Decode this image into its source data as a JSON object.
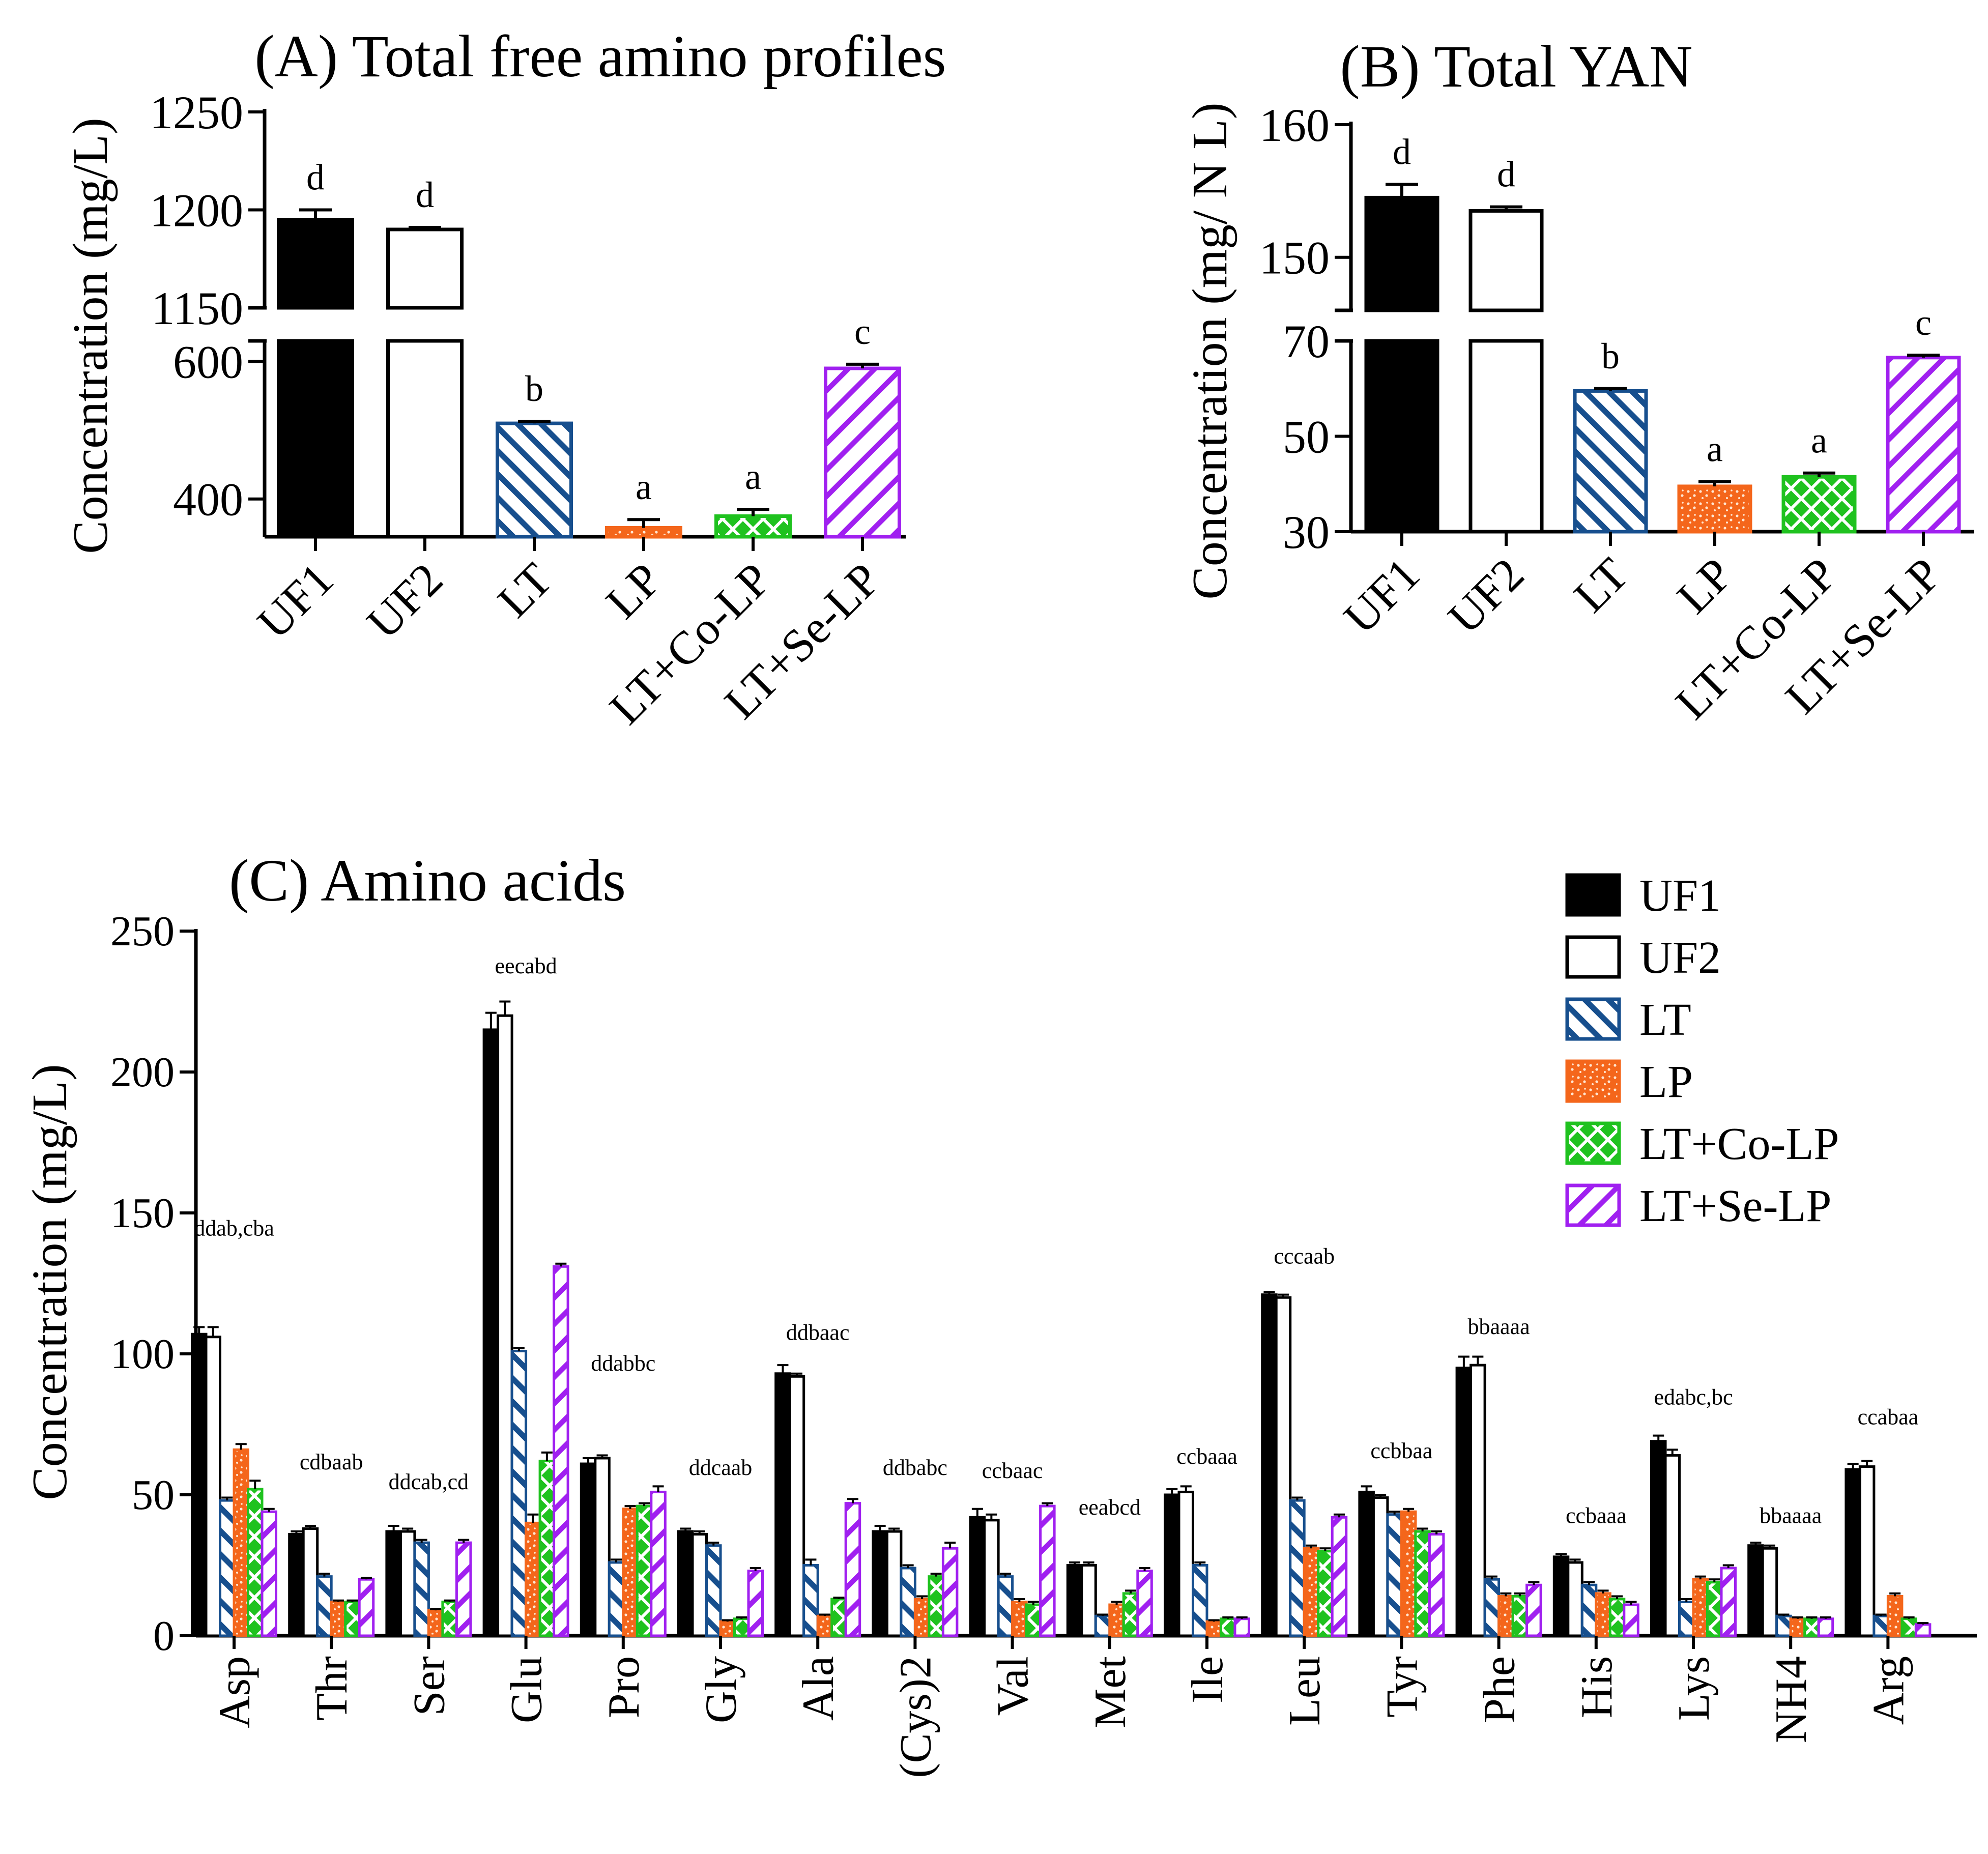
{
  "colors": {
    "UF1": "#000000",
    "UF2": "#ffffff",
    "LT": "#174f8e",
    "LP": "#f4661b",
    "LT+Co-LP": "#1fc21f",
    "LT+Se-LP": "#a020f0"
  },
  "chart_data": [
    {
      "id": "A",
      "type": "bar",
      "title": "(A) Total free amino profiles",
      "xlabel": "",
      "ylabel": "Concentration (mg/L)",
      "categories": [
        "UF1",
        "UF2",
        "LT",
        "LP",
        "LT+Co-LP",
        "LT+Se-LP"
      ],
      "values": [
        1195,
        1190,
        510,
        358,
        375,
        590
      ],
      "errors": [
        5,
        1,
        3,
        12,
        10,
        6
      ],
      "significance": [
        "d",
        "d",
        "b",
        "a",
        "a",
        "c"
      ],
      "broken_axis": {
        "upper": {
          "ylim": [
            1150,
            1250
          ],
          "ticks": [
            "1150",
            "1200",
            "1250"
          ]
        },
        "lower": {
          "ylim": [
            345,
            630
          ],
          "ticks": [
            "400",
            "600"
          ]
        }
      }
    },
    {
      "id": "B",
      "type": "bar",
      "title": "(B) Total YAN",
      "xlabel": "",
      "ylabel": "Concentration (mg/ N L)",
      "categories": [
        "UF1",
        "UF2",
        "LT",
        "LP",
        "LT+Co-LP",
        "LT+Se-LP"
      ],
      "values": [
        154.5,
        153.5,
        59.5,
        39.5,
        41.5,
        66.5
      ],
      "errors": [
        1.0,
        0.3,
        0.5,
        1.0,
        0.8,
        0.5
      ],
      "significance": [
        "d",
        "d",
        "b",
        "a",
        "a",
        "c"
      ],
      "broken_axis": {
        "upper": {
          "ylim": [
            146,
            160
          ],
          "ticks": [
            "150",
            "160"
          ]
        },
        "lower": {
          "ylim": [
            30,
            70
          ],
          "ticks": [
            "30",
            "50",
            "70"
          ]
        }
      }
    },
    {
      "id": "C",
      "type": "bar",
      "title": "(C)  Amino acids",
      "xlabel": "",
      "ylabel": "Concentration (mg/L)",
      "ylim": [
        0,
        250
      ],
      "yticks": [
        "0",
        "50",
        "100",
        "150",
        "200",
        "250"
      ],
      "categories": [
        "Asp",
        "Thr",
        "Ser",
        "Glu",
        "Pro",
        "Gly",
        "Ala",
        "(Cys)2",
        "Val",
        "Met",
        "Ile",
        "Leu",
        "Tyr",
        "Phe",
        "His",
        "Lys",
        "NH4",
        "Arg"
      ],
      "annotations": [
        "ddab,cba",
        "cdbaab",
        "ddcab,cd",
        "eecabd",
        "ddabbc",
        "ddcaab",
        "ddbaac",
        "ddbabc",
        "ccbaac",
        "eeabcd",
        "ccbaaa",
        "cccaab",
        "ccbbaa",
        "bbaaaa",
        "ccbaaa",
        "edabc,bc",
        "bbaaaa",
        "ccabaa"
      ],
      "annotation_heights": [
        142,
        59,
        52,
        235,
        94,
        57,
        105,
        57,
        56,
        43,
        61,
        132,
        63,
        107,
        40,
        82,
        40,
        75
      ],
      "legend_position": "top-right",
      "series": [
        {
          "name": "UF1",
          "values": [
            107,
            36,
            37,
            215,
            61,
            37,
            93,
            37,
            42,
            25,
            50,
            121,
            51,
            95,
            28,
            69,
            32,
            59
          ]
        },
        {
          "name": "UF2",
          "values": [
            106,
            38,
            37,
            220,
            63,
            36,
            92,
            37,
            41,
            25,
            51,
            120,
            49,
            96,
            26,
            64,
            31,
            60
          ]
        },
        {
          "name": "LT",
          "values": [
            48,
            21,
            33,
            101,
            26,
            32,
            25,
            24,
            21,
            7,
            25,
            48,
            43,
            20,
            18,
            12,
            7,
            7
          ]
        },
        {
          "name": "LP",
          "values": [
            66,
            12,
            9,
            40,
            45,
            5,
            7,
            13,
            12,
            11,
            5,
            31,
            44,
            14,
            15,
            20,
            6,
            14
          ]
        },
        {
          "name": "LT+Co-LP",
          "values": [
            52,
            12,
            12,
            62,
            46,
            6,
            13,
            21,
            11,
            15,
            6,
            30,
            37,
            14,
            13,
            19,
            6,
            6
          ]
        },
        {
          "name": "LT+Se-LP",
          "values": [
            44,
            20,
            33,
            131,
            51,
            23,
            47,
            31,
            46,
            23,
            6,
            42,
            36,
            18,
            11,
            24,
            6,
            4
          ]
        }
      ],
      "errors": [
        [
          2.5,
          1,
          2,
          6,
          2,
          1,
          3,
          2,
          3,
          1,
          2,
          1,
          2,
          4,
          1,
          2,
          1,
          2
        ],
        [
          3.5,
          1,
          1,
          5,
          1,
          1,
          1,
          1,
          2,
          1,
          2,
          1,
          1,
          3,
          1,
          2,
          1,
          2
        ],
        [
          1,
          1,
          1,
          1,
          1,
          1,
          2,
          1,
          1,
          0.5,
          1,
          1,
          1,
          1,
          1,
          1,
          0.5,
          0.5
        ],
        [
          2,
          0.5,
          0.5,
          3,
          1,
          0.5,
          0.5,
          1,
          1,
          1,
          0.5,
          1,
          1,
          1,
          1,
          1,
          0.5,
          1
        ],
        [
          3,
          0.5,
          0.5,
          3,
          1,
          0.5,
          0.5,
          1,
          1,
          1,
          0.5,
          1,
          1,
          1,
          1,
          1,
          0.5,
          0.5
        ],
        [
          1,
          0.5,
          1,
          1,
          2,
          1,
          1.5,
          2,
          1,
          1,
          0.5,
          1,
          1,
          1,
          1,
          1,
          0.5,
          0.5
        ]
      ]
    }
  ]
}
